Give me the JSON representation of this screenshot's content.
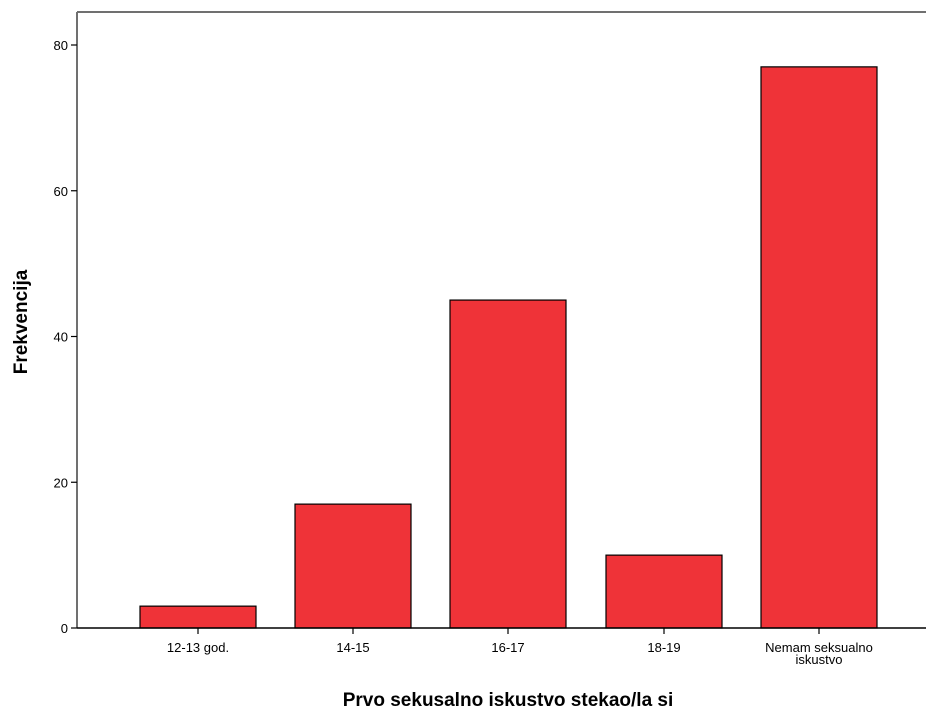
{
  "chart_data": {
    "type": "bar",
    "categories": [
      "12-13 god.",
      "14-15",
      "16-17",
      "18-19",
      "Nemam seksualno iskustvo"
    ],
    "category_label_lines": [
      [
        "12-13 god."
      ],
      [
        "14-15"
      ],
      [
        "16-17"
      ],
      [
        "18-19"
      ],
      [
        "Nemam seksualno",
        "iskustvo"
      ]
    ],
    "values": [
      3,
      17,
      45,
      10,
      77
    ],
    "xlabel": "Prvo sekusalno iskustvo stekao/la si",
    "ylabel": "Frekvencija",
    "ylim": [
      0,
      80
    ],
    "yticks": [
      0,
      20,
      40,
      60,
      80
    ],
    "ytick_labels": [
      "0",
      "20",
      "40",
      "60",
      "80"
    ],
    "bar_color": "#ef3338",
    "bar_edge_color": "#000000",
    "grid": false,
    "legend": "none"
  }
}
